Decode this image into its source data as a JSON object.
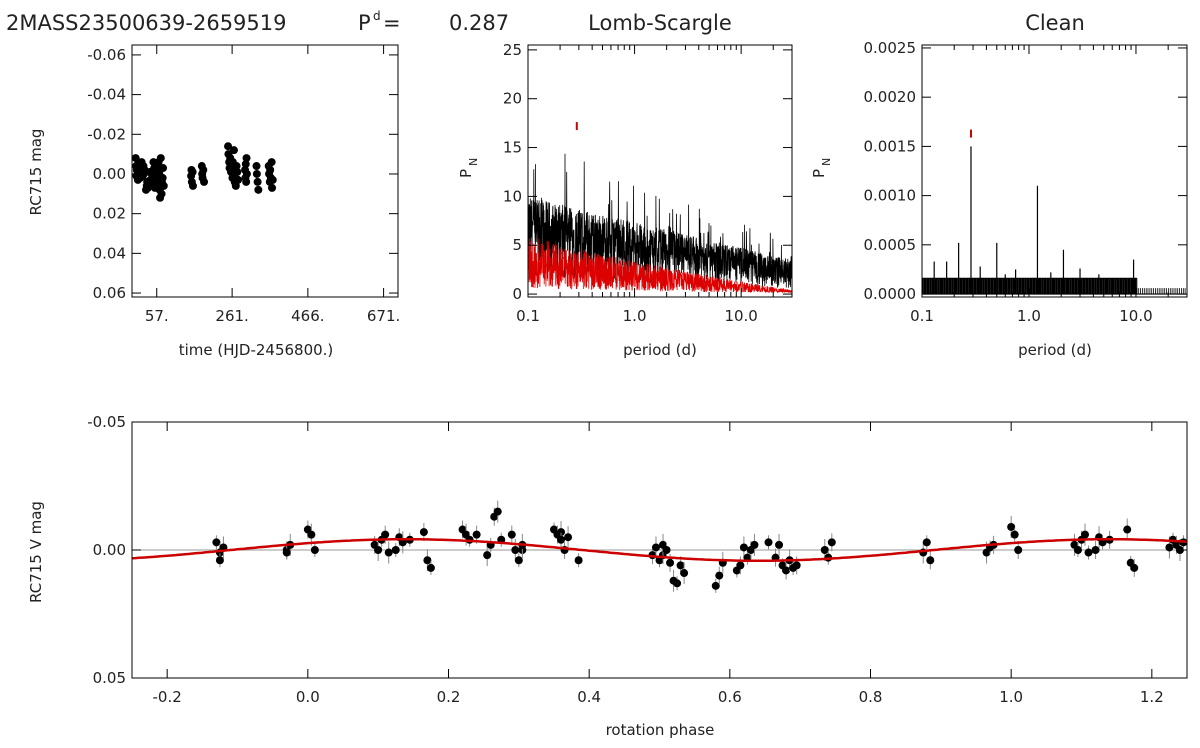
{
  "header": {
    "star_id": "2MASS23500639-2659519",
    "period_label": "P",
    "period_sup": "d",
    "period_eq": "=",
    "period_value": "0.287"
  },
  "chart_data": [
    {
      "type": "scatter",
      "title": "",
      "xlabel": "time (HJD-2456800.)",
      "ylabel": "RC715 mag",
      "xlim": [
        -10,
        710
      ],
      "ylim": [
        0.062,
        -0.065
      ],
      "x_ticks": [
        57,
        261,
        466,
        671
      ],
      "x_tick_labels": [
        "57.",
        "261.",
        "466.",
        "671."
      ],
      "y_ticks": [
        -0.06,
        -0.04,
        -0.02,
        0.0,
        0.02,
        0.04,
        0.06
      ],
      "y_tick_labels": [
        "-0.06",
        "-0.04",
        "-0.02",
        "0.00",
        "0.02",
        "0.04",
        "0.06"
      ],
      "marker_color": "#000000",
      "points": [
        [
          0,
          -0.008
        ],
        [
          1,
          -0.004
        ],
        [
          2,
          0.001
        ],
        [
          3,
          -0.002
        ],
        [
          6,
          0.003
        ],
        [
          8,
          -0.005
        ],
        [
          10,
          -0.001
        ],
        [
          12,
          0.002
        ],
        [
          16,
          -0.006
        ],
        [
          18,
          -0.003
        ],
        [
          19,
          0.001
        ],
        [
          21,
          -0.004
        ],
        [
          22,
          0.0
        ],
        [
          24,
          -0.002
        ],
        [
          28,
          0.008
        ],
        [
          30,
          0.006
        ],
        [
          31,
          0.004
        ],
        [
          33,
          0.007
        ],
        [
          38,
          -0.001
        ],
        [
          40,
          0.003
        ],
        [
          42,
          0.005
        ],
        [
          44,
          0.0
        ],
        [
          45,
          0.002
        ],
        [
          48,
          -0.006
        ],
        [
          50,
          -0.003
        ],
        [
          51,
          0.004
        ],
        [
          52,
          0.007
        ],
        [
          54,
          -0.002
        ],
        [
          56,
          0.005
        ],
        [
          58,
          0.001
        ],
        [
          59,
          -0.004
        ],
        [
          61,
          0.003
        ],
        [
          62,
          -0.006
        ],
        [
          64,
          0.0
        ],
        [
          65,
          0.008
        ],
        [
          66,
          0.012
        ],
        [
          68,
          -0.008
        ],
        [
          70,
          0.01
        ],
        [
          71,
          0.004
        ],
        [
          73,
          0.002
        ],
        [
          74,
          -0.003
        ],
        [
          76,
          0.006
        ],
        [
          150,
          0.001
        ],
        [
          151,
          -0.002
        ],
        [
          152,
          0.004
        ],
        [
          154,
          -0.001
        ],
        [
          155,
          0.006
        ],
        [
          179,
          -0.004
        ],
        [
          180,
          0.0
        ],
        [
          181,
          0.002
        ],
        [
          183,
          -0.002
        ],
        [
          185,
          0.004
        ],
        [
          250,
          -0.014
        ],
        [
          251,
          -0.01
        ],
        [
          253,
          -0.006
        ],
        [
          254,
          -0.003
        ],
        [
          256,
          -0.008
        ],
        [
          257,
          -0.005
        ],
        [
          258,
          -0.001
        ],
        [
          260,
          -0.004
        ],
        [
          262,
          0.002
        ],
        [
          263,
          -0.006
        ],
        [
          265,
          0.0
        ],
        [
          266,
          -0.012
        ],
        [
          268,
          0.004
        ],
        [
          270,
          -0.002
        ],
        [
          271,
          0.006
        ],
        [
          273,
          -0.004
        ],
        [
          275,
          -0.001
        ],
        [
          277,
          0.003
        ],
        [
          296,
          -0.002
        ],
        [
          297,
          0.002
        ],
        [
          298,
          -0.005
        ],
        [
          299,
          0.004
        ],
        [
          300,
          -0.008
        ],
        [
          301,
          0.0
        ],
        [
          327,
          -0.004
        ],
        [
          328,
          0.0
        ],
        [
          330,
          0.004
        ],
        [
          332,
          0.008
        ],
        [
          360,
          -0.004
        ],
        [
          361,
          0.0
        ],
        [
          363,
          0.004
        ],
        [
          364,
          -0.002
        ],
        [
          366,
          0.002
        ],
        [
          368,
          -0.006
        ],
        [
          369,
          0.007
        ],
        [
          371,
          0.003
        ]
      ]
    },
    {
      "type": "line",
      "title": "Lomb-Scargle",
      "xlabel": "period (d)",
      "ylabel": "P",
      "ylabel_sub": "N",
      "xscale": "log",
      "xlim": [
        0.1,
        30
      ],
      "ylim": [
        -0.3,
        25.5
      ],
      "x_ticks": [
        0.1,
        1.0,
        10.0
      ],
      "x_tick_labels": [
        "0.1",
        "1.0",
        "10.0"
      ],
      "y_ticks": [
        0,
        5,
        10,
        15,
        20,
        25
      ],
      "y_tick_labels": [
        "0",
        "5",
        "10",
        "15",
        "20",
        "25"
      ],
      "series": [
        {
          "color": "#000000"
        },
        {
          "color": "#dd0000"
        }
      ],
      "period_marker": {
        "x": 0.287,
        "y": 17.2,
        "color": "#cc0000"
      }
    },
    {
      "type": "line",
      "title": "Clean",
      "xlabel": "period (d)",
      "ylabel": "P",
      "ylabel_sub": "N",
      "xscale": "log",
      "xlim": [
        0.1,
        30
      ],
      "ylim": [
        -3e-05,
        0.00253
      ],
      "x_ticks": [
        0.1,
        1.0,
        10.0
      ],
      "x_tick_labels": [
        "0.1",
        "1.0",
        "10.0"
      ],
      "y_ticks": [
        0.0,
        0.0005,
        0.001,
        0.0015,
        0.002,
        0.0025
      ],
      "y_tick_labels": [
        "0.0000",
        "0.0005",
        "0.0010",
        "0.0015",
        "0.0020",
        "0.0025"
      ],
      "line_color": "#000000",
      "peaks": [
        [
          0.287,
          0.0015
        ],
        [
          1.2,
          0.0011
        ],
        [
          0.22,
          0.00052
        ],
        [
          0.5,
          0.00052
        ],
        [
          0.17,
          0.00033
        ],
        [
          0.13,
          0.00033
        ],
        [
          0.35,
          0.00028
        ],
        [
          0.75,
          0.00025
        ],
        [
          2.1,
          0.00045
        ],
        [
          3.0,
          0.00026
        ],
        [
          0.6,
          0.0002
        ],
        [
          9.5,
          0.00035
        ],
        [
          1.6,
          0.00022
        ],
        [
          4.5,
          0.0002
        ]
      ],
      "floor": 0.00016,
      "floor_end": 10.2,
      "period_marker": {
        "x": 0.287,
        "y": 0.00163,
        "color": "#cc0000"
      }
    },
    {
      "type": "scatter",
      "title": "",
      "xlabel": "rotation phase",
      "ylabel": "RC715 V mag",
      "xlim": [
        -0.25,
        1.25
      ],
      "ylim": [
        0.05,
        -0.05
      ],
      "x_ticks": [
        -0.2,
        0.0,
        0.2,
        0.4,
        0.6,
        0.8,
        1.0,
        1.2
      ],
      "x_tick_labels": [
        "-0.2",
        "0.0",
        "0.2",
        "0.4",
        "0.6",
        "0.8",
        "1.0",
        "1.2"
      ],
      "y_ticks": [
        -0.05,
        0.0,
        0.05
      ],
      "y_tick_labels": [
        "-0.05",
        "0.00",
        "0.05"
      ],
      "marker_color": "#000000",
      "fit_color": "#cc0000",
      "fit": {
        "amplitude": 0.0042,
        "peak_phase": 0.14
      },
      "zero_line_color": "#999999",
      "points": [
        [
          -0.13,
          -0.003
        ],
        [
          -0.125,
          0.001
        ],
        [
          -0.12,
          -0.001
        ],
        [
          -0.125,
          0.004
        ],
        [
          -0.03,
          0.0
        ],
        [
          -0.025,
          -0.002
        ],
        [
          -0.03,
          0.001
        ],
        [
          0.0,
          -0.008
        ],
        [
          0.005,
          -0.006
        ],
        [
          0.01,
          0.0
        ],
        [
          0.095,
          -0.002
        ],
        [
          0.1,
          0.0
        ],
        [
          0.105,
          -0.004
        ],
        [
          0.11,
          -0.006
        ],
        [
          0.115,
          0.001
        ],
        [
          0.125,
          0.0
        ],
        [
          0.13,
          -0.005
        ],
        [
          0.135,
          -0.003
        ],
        [
          0.145,
          -0.004
        ],
        [
          0.165,
          -0.007
        ],
        [
          0.17,
          0.004
        ],
        [
          0.175,
          0.007
        ],
        [
          0.22,
          -0.008
        ],
        [
          0.225,
          -0.006
        ],
        [
          0.23,
          -0.004
        ],
        [
          0.24,
          -0.006
        ],
        [
          0.255,
          0.002
        ],
        [
          0.26,
          -0.002
        ],
        [
          0.265,
          -0.013
        ],
        [
          0.27,
          -0.015
        ],
        [
          0.275,
          -0.004
        ],
        [
          0.29,
          -0.006
        ],
        [
          0.295,
          0.0
        ],
        [
          0.3,
          0.004
        ],
        [
          0.305,
          0.0
        ],
        [
          0.305,
          -0.002
        ],
        [
          0.35,
          -0.008
        ],
        [
          0.355,
          -0.006
        ],
        [
          0.36,
          -0.007
        ],
        [
          0.36,
          -0.004
        ],
        [
          0.365,
          0.0
        ],
        [
          0.37,
          -0.005
        ],
        [
          0.385,
          0.004
        ],
        [
          0.49,
          0.002
        ],
        [
          0.495,
          -0.001
        ],
        [
          0.5,
          0.004
        ],
        [
          0.505,
          0.002
        ],
        [
          0.505,
          -0.002
        ],
        [
          0.51,
          0.0
        ],
        [
          0.515,
          0.005
        ],
        [
          0.52,
          0.012
        ],
        [
          0.525,
          0.013
        ],
        [
          0.53,
          0.006
        ],
        [
          0.535,
          0.009
        ],
        [
          0.58,
          0.014
        ],
        [
          0.585,
          0.01
        ],
        [
          0.59,
          0.005
        ],
        [
          0.61,
          0.008
        ],
        [
          0.615,
          0.006
        ],
        [
          0.62,
          -0.001
        ],
        [
          0.625,
          0.003
        ],
        [
          0.63,
          0.0
        ],
        [
          0.635,
          -0.002
        ],
        [
          0.655,
          -0.003
        ],
        [
          0.665,
          0.003
        ],
        [
          0.67,
          -0.002
        ],
        [
          0.675,
          0.006
        ],
        [
          0.68,
          0.008
        ],
        [
          0.685,
          0.004
        ],
        [
          0.69,
          0.007
        ],
        [
          0.695,
          0.006
        ],
        [
          0.735,
          0.0
        ],
        [
          0.74,
          0.003
        ],
        [
          0.745,
          -0.003
        ],
        [
          0.875,
          0.001
        ],
        [
          0.88,
          -0.003
        ],
        [
          0.885,
          0.004
        ],
        [
          0.965,
          0.001
        ],
        [
          0.97,
          -0.001
        ],
        [
          0.975,
          -0.002
        ],
        [
          1.0,
          -0.009
        ],
        [
          1.005,
          -0.006
        ],
        [
          1.01,
          0.0
        ],
        [
          1.09,
          -0.002
        ],
        [
          1.095,
          0.0
        ],
        [
          1.1,
          -0.004
        ],
        [
          1.105,
          -0.006
        ],
        [
          1.11,
          0.001
        ],
        [
          1.12,
          0.0
        ],
        [
          1.125,
          -0.005
        ],
        [
          1.13,
          -0.003
        ],
        [
          1.14,
          -0.004
        ],
        [
          1.165,
          -0.008
        ],
        [
          1.17,
          0.005
        ],
        [
          1.175,
          0.007
        ],
        [
          1.225,
          -0.001
        ],
        [
          1.23,
          -0.004
        ],
        [
          1.235,
          -0.002
        ],
        [
          1.24,
          0.0
        ],
        [
          1.245,
          -0.003
        ]
      ]
    }
  ]
}
